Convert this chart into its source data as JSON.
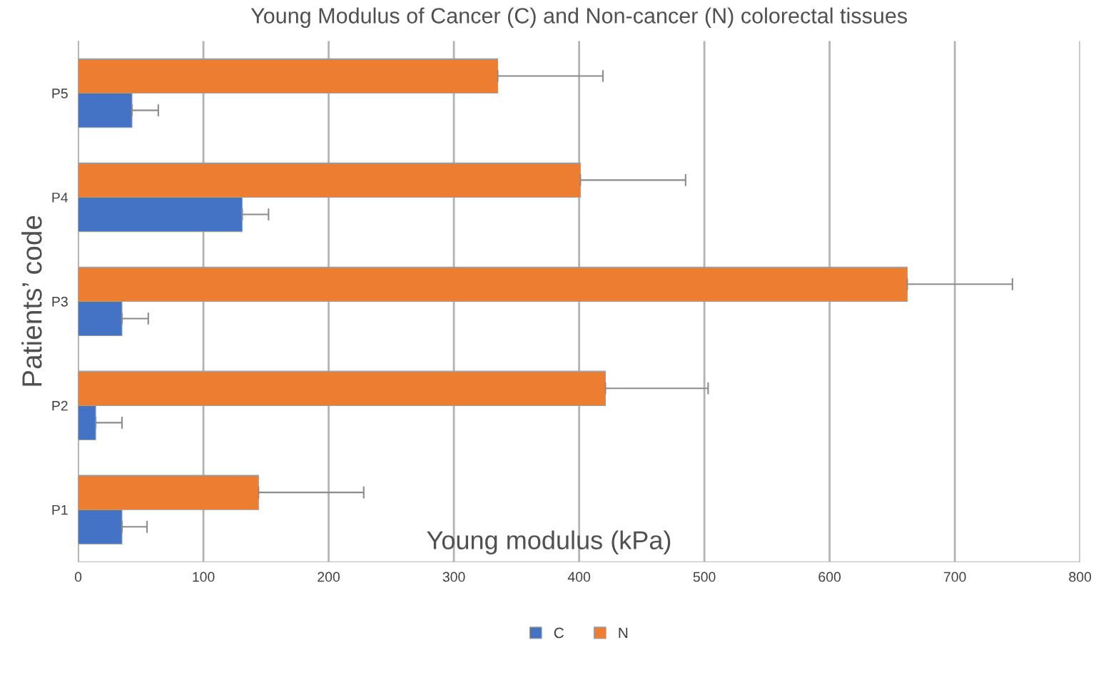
{
  "chart_data": {
    "type": "bar",
    "orientation": "horizontal",
    "title": "Young Modulus of Cancer (C) and Non-cancer (N) colorectal tissues",
    "xlabel": "Young modulus (kPa)",
    "ylabel": "Patients’ code",
    "categories": [
      "P5",
      "P4",
      "P3",
      "P2",
      "P1"
    ],
    "series": [
      {
        "name": "C",
        "color": "#4472c4",
        "values": [
          43,
          131,
          35,
          14,
          35
        ],
        "errors": [
          [
            43,
            64
          ],
          [
            131,
            152
          ],
          [
            35,
            56
          ],
          [
            14,
            35
          ],
          [
            35,
            55
          ]
        ]
      },
      {
        "name": "N",
        "color": "#ed7d31",
        "values": [
          335,
          401,
          662,
          421,
          144
        ],
        "errors": [
          [
            335,
            419
          ],
          [
            401,
            485
          ],
          [
            662,
            746
          ],
          [
            421,
            503
          ],
          [
            144,
            228
          ]
        ]
      }
    ],
    "xlim": [
      0,
      800
    ],
    "xticks": [
      0,
      100,
      200,
      300,
      400,
      500,
      600,
      700,
      800
    ],
    "grid": "x",
    "legend": "bottom"
  }
}
